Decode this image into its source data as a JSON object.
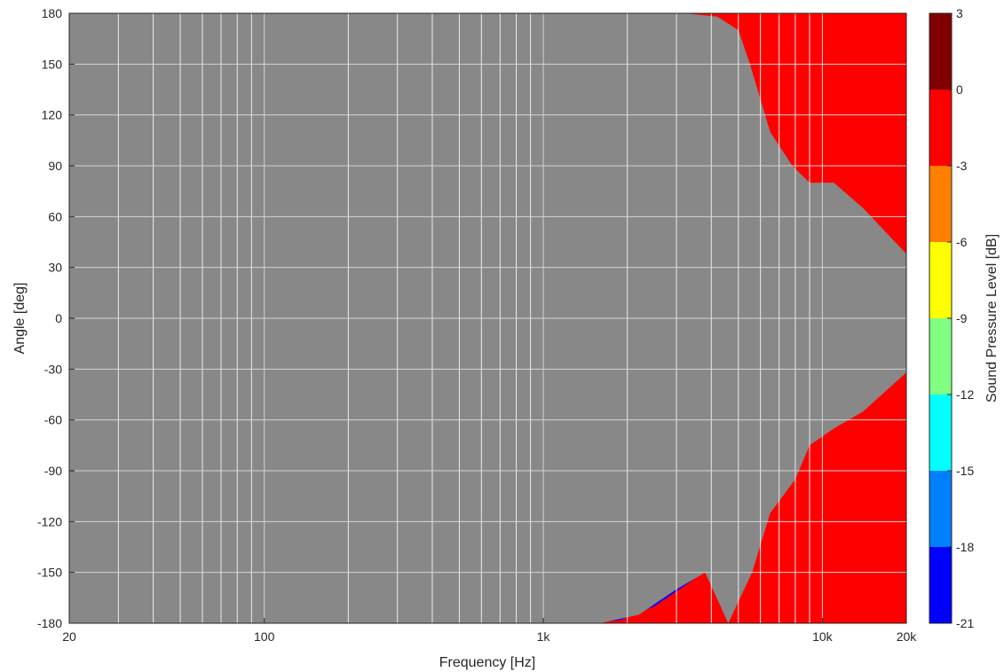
{
  "chart_data": {
    "type": "heatmap",
    "subtype": "filled-contour",
    "title": "",
    "xlabel": "Frequency [Hz]",
    "ylabel": "Angle [deg]",
    "colorbar_label": "Sound Pressure Level [dB]",
    "xscale": "log",
    "xlim": [
      20,
      20000
    ],
    "ylim": [
      -180,
      180
    ],
    "grid": true,
    "x_ticks": [
      {
        "value": 20,
        "label": "20"
      },
      {
        "value": 100,
        "label": "100"
      },
      {
        "value": 1000,
        "label": "1k"
      },
      {
        "value": 10000,
        "label": "10k"
      },
      {
        "value": 20000,
        "label": "20k"
      }
    ],
    "y_ticks": [
      180,
      150,
      120,
      90,
      60,
      30,
      0,
      -30,
      -60,
      -90,
      -120,
      -150,
      -180
    ],
    "y_tick_labels": [
      "180",
      "150",
      "120",
      "90",
      "60",
      "30",
      "0",
      "-30",
      "-60",
      "-90",
      "-120",
      "-150",
      "-180"
    ],
    "colorbar_levels": [
      {
        "from": 0,
        "to": 3,
        "color": "#800000"
      },
      {
        "from": -3,
        "to": 0,
        "color": "#ff0000"
      },
      {
        "from": -6,
        "to": -3,
        "color": "#ff8000"
      },
      {
        "from": -9,
        "to": -6,
        "color": "#ffff00"
      },
      {
        "from": -12,
        "to": -9,
        "color": "#80ff80"
      },
      {
        "from": -15,
        "to": -12,
        "color": "#00ffff"
      },
      {
        "from": -18,
        "to": -15,
        "color": "#0080ff"
      },
      {
        "from": -21,
        "to": -18,
        "color": "#0000ff"
      }
    ],
    "colorbar_tick_labels": [
      "3",
      "0",
      "-3",
      "-6",
      "-9",
      "-12",
      "-15",
      "-18",
      "-21"
    ],
    "contour_boundaries": [
      {
        "level": -3,
        "upper": [
          [
            20,
            180
          ],
          [
            280,
            180
          ],
          [
            285,
            130
          ],
          [
            320,
            110
          ],
          [
            380,
            100
          ],
          [
            450,
            95
          ],
          [
            520,
            90
          ],
          [
            600,
            80
          ],
          [
            700,
            68
          ],
          [
            850,
            65
          ],
          [
            1000,
            62
          ],
          [
            1300,
            55
          ],
          [
            1700,
            48
          ],
          [
            2200,
            40
          ],
          [
            3000,
            33
          ],
          [
            4000,
            28
          ],
          [
            5500,
            25
          ],
          [
            7000,
            19
          ],
          [
            10000,
            17
          ],
          [
            14000,
            14
          ],
          [
            20000,
            12
          ]
        ],
        "lower": [
          [
            20,
            -180
          ],
          [
            280,
            -180
          ],
          [
            285,
            -140
          ],
          [
            320,
            -110
          ],
          [
            380,
            -95
          ],
          [
            450,
            -85
          ],
          [
            520,
            -80
          ],
          [
            600,
            -75
          ],
          [
            700,
            -70
          ],
          [
            850,
            -66
          ],
          [
            1000,
            -62
          ],
          [
            1300,
            -52
          ],
          [
            1700,
            -42
          ],
          [
            2200,
            -38
          ],
          [
            3000,
            -32
          ],
          [
            4000,
            -28
          ],
          [
            5500,
            -25
          ],
          [
            7000,
            -17
          ],
          [
            10000,
            -14
          ],
          [
            14000,
            -13
          ],
          [
            20000,
            -12
          ]
        ]
      },
      {
        "level": -6,
        "upper": [
          [
            20,
            180
          ],
          [
            520,
            180
          ],
          [
            560,
            150
          ],
          [
            640,
            140
          ],
          [
            720,
            125
          ],
          [
            850,
            120
          ],
          [
            1000,
            115
          ],
          [
            1300,
            105
          ],
          [
            1700,
            95
          ],
          [
            2200,
            80
          ],
          [
            3000,
            62
          ],
          [
            4000,
            52
          ],
          [
            5500,
            45
          ],
          [
            7000,
            32
          ],
          [
            10000,
            28
          ],
          [
            14000,
            25
          ],
          [
            20000,
            22
          ]
        ],
        "lower": [
          [
            20,
            -180
          ],
          [
            520,
            -180
          ],
          [
            560,
            -145
          ],
          [
            640,
            -130
          ],
          [
            720,
            -120
          ],
          [
            850,
            -112
          ],
          [
            1000,
            -105
          ],
          [
            1300,
            -88
          ],
          [
            1700,
            -70
          ],
          [
            2200,
            -62
          ],
          [
            3000,
            -50
          ],
          [
            4000,
            -40
          ],
          [
            5500,
            -35
          ],
          [
            7000,
            -25
          ],
          [
            10000,
            -22
          ],
          [
            14000,
            -20
          ],
          [
            20000,
            -18
          ]
        ]
      },
      {
        "level": -9,
        "upper": [
          [
            20,
            180
          ],
          [
            550,
            180
          ],
          [
            600,
            170
          ],
          [
            700,
            160
          ],
          [
            850,
            150
          ],
          [
            1000,
            142
          ],
          [
            1300,
            130
          ],
          [
            1700,
            118
          ],
          [
            2200,
            100
          ],
          [
            3000,
            78
          ],
          [
            4000,
            65
          ],
          [
            5500,
            55
          ],
          [
            7000,
            42
          ],
          [
            10000,
            36
          ],
          [
            14000,
            32
          ],
          [
            20000,
            26
          ]
        ],
        "lower": [
          [
            20,
            -180
          ],
          [
            550,
            -180
          ],
          [
            600,
            -165
          ],
          [
            700,
            -155
          ],
          [
            850,
            -140
          ],
          [
            1000,
            -130
          ],
          [
            1300,
            -110
          ],
          [
            1700,
            -95
          ],
          [
            2200,
            -80
          ],
          [
            3000,
            -62
          ],
          [
            4000,
            -55
          ],
          [
            5500,
            -45
          ],
          [
            7000,
            -32
          ],
          [
            10000,
            -28
          ],
          [
            14000,
            -26
          ],
          [
            20000,
            -22
          ]
        ]
      },
      {
        "level": -12,
        "upper": [
          [
            20,
            180
          ],
          [
            650,
            180
          ],
          [
            800,
            175
          ],
          [
            1000,
            170
          ],
          [
            1300,
            165
          ],
          [
            1700,
            150
          ],
          [
            2200,
            130
          ],
          [
            3000,
            110
          ],
          [
            4000,
            90
          ],
          [
            5500,
            70
          ],
          [
            7000,
            55
          ],
          [
            10000,
            45
          ],
          [
            14000,
            40
          ],
          [
            20000,
            30
          ]
        ],
        "lower": [
          [
            20,
            -180
          ],
          [
            650,
            -180
          ],
          [
            800,
            -172
          ],
          [
            1000,
            -165
          ],
          [
            1300,
            -145
          ],
          [
            1700,
            -130
          ],
          [
            2200,
            -110
          ],
          [
            3000,
            -85
          ],
          [
            4000,
            -70
          ],
          [
            5500,
            -58
          ],
          [
            7000,
            -42
          ],
          [
            10000,
            -36
          ],
          [
            14000,
            -32
          ],
          [
            20000,
            -26
          ]
        ]
      },
      {
        "level": -15,
        "upper": [
          [
            20,
            180
          ],
          [
            1100,
            180
          ],
          [
            1300,
            178
          ],
          [
            1700,
            170
          ],
          [
            2200,
            160
          ],
          [
            3000,
            145
          ],
          [
            4000,
            125
          ],
          [
            5500,
            90
          ],
          [
            7000,
            70
          ],
          [
            10000,
            55
          ],
          [
            14000,
            48
          ],
          [
            20000,
            32
          ]
        ],
        "lower": [
          [
            20,
            -180
          ],
          [
            1100,
            -180
          ],
          [
            1300,
            -178
          ],
          [
            1700,
            -165
          ],
          [
            2200,
            -140
          ],
          [
            3000,
            -115
          ],
          [
            4000,
            -100
          ],
          [
            5500,
            -80
          ],
          [
            7000,
            -55
          ],
          [
            10000,
            -45
          ],
          [
            14000,
            -38
          ],
          [
            20000,
            -28
          ]
        ]
      },
      {
        "level": -18,
        "upper": [
          [
            20,
            180
          ],
          [
            1500,
            180
          ],
          [
            2000,
            178
          ],
          [
            2600,
            175
          ],
          [
            3400,
            170
          ],
          [
            4300,
            155
          ],
          [
            5500,
            120
          ],
          [
            7000,
            95
          ],
          [
            9000,
            72
          ],
          [
            11000,
            65
          ],
          [
            14000,
            55
          ],
          [
            20000,
            35
          ]
        ],
        "lower": [
          [
            20,
            -180
          ],
          [
            1500,
            -180
          ],
          [
            1900,
            -178
          ],
          [
            2500,
            -170
          ],
          [
            3400,
            -155
          ],
          [
            4300,
            -140
          ],
          [
            5500,
            -110
          ],
          [
            7000,
            -85
          ],
          [
            9000,
            -65
          ],
          [
            11000,
            -55
          ],
          [
            14000,
            -48
          ],
          [
            20000,
            -30
          ]
        ]
      },
      {
        "level": -21,
        "upper": [
          [
            20,
            180
          ],
          [
            1800,
            180
          ],
          [
            2400,
            180
          ],
          [
            3200,
            180
          ],
          [
            4200,
            178
          ],
          [
            5000,
            170
          ],
          [
            5500,
            150
          ],
          [
            6500,
            110
          ],
          [
            7800,
            90
          ],
          [
            9000,
            80
          ],
          [
            11000,
            80
          ],
          [
            14000,
            65
          ],
          [
            20000,
            38
          ]
        ],
        "lower": [
          [
            20,
            -180
          ],
          [
            1600,
            -180
          ],
          [
            2200,
            -175
          ],
          [
            3000,
            -160
          ],
          [
            3800,
            -150
          ],
          [
            4600,
            -180
          ],
          [
            5600,
            -150
          ],
          [
            6500,
            -115
          ],
          [
            8000,
            -95
          ],
          [
            9000,
            -75
          ],
          [
            11000,
            -65
          ],
          [
            14000,
            -55
          ],
          [
            20000,
            -32
          ]
        ]
      }
    ]
  }
}
